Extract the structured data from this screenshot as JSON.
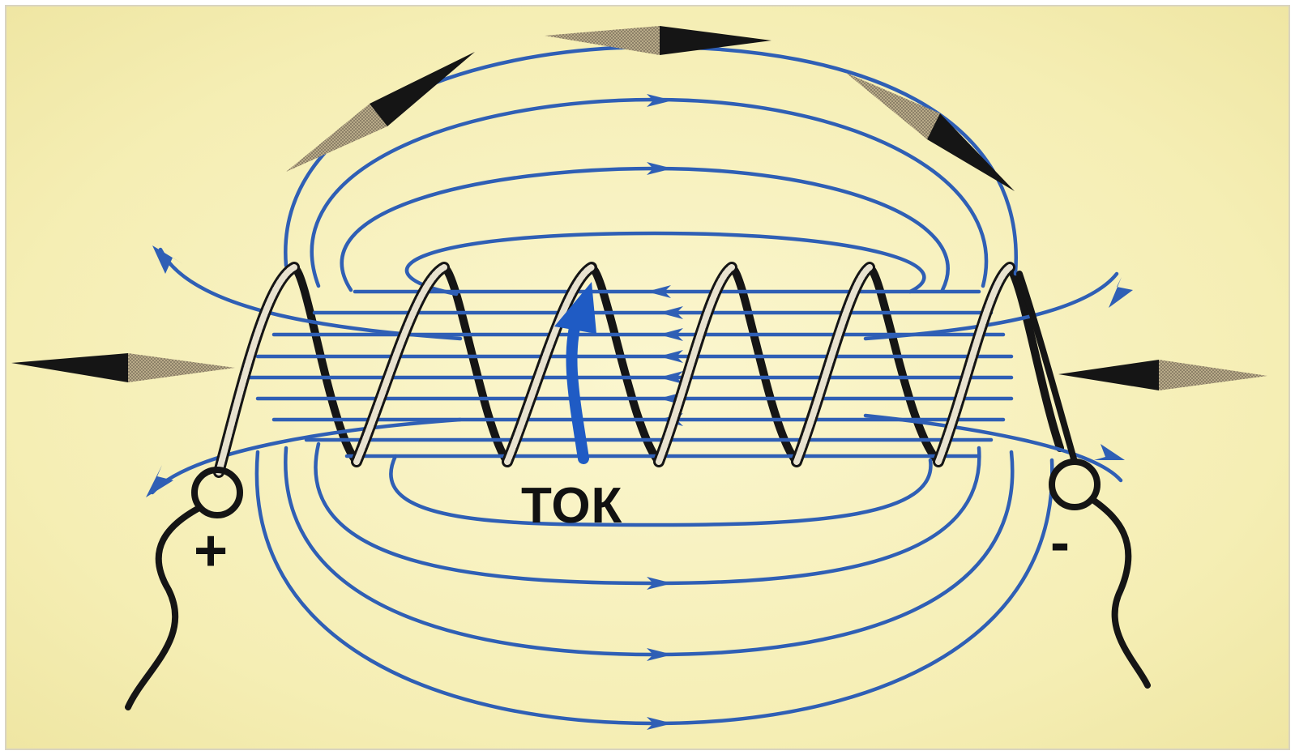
{
  "labels": {
    "current": "ТОК",
    "positive": "+",
    "negative": "-"
  },
  "colors": {
    "background": "#f5eeb4",
    "field_lines": "#2f5fb5",
    "coil_dark": "#151515",
    "coil_light": "#e8e2cf",
    "needle_dark": "#151515",
    "needle_light": "#9c8f72",
    "current_arrow": "#1f5bc4",
    "text": "#111111"
  },
  "icons": {
    "compass_needle": "compass-needle-icon",
    "terminal": "terminal-ring-icon",
    "field_arrow": "field-arrow-icon"
  }
}
